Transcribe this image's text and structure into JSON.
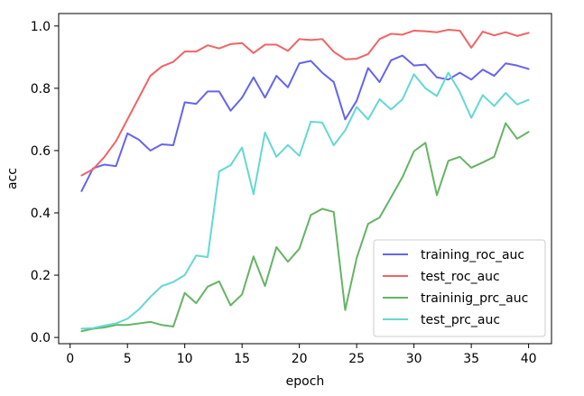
{
  "chart_data": {
    "type": "line",
    "xlabel": "epoch",
    "ylabel": "acc",
    "xlim": [
      -1,
      42
    ],
    "ylim": [
      -0.02,
      1.04
    ],
    "xticks": [
      0,
      5,
      10,
      15,
      20,
      25,
      30,
      35,
      40
    ],
    "yticks": [
      0.0,
      0.2,
      0.4,
      0.6,
      0.8,
      1.0
    ],
    "grid": false,
    "legend_position": "lower-right",
    "x": [
      1,
      2,
      3,
      4,
      5,
      6,
      7,
      8,
      9,
      10,
      11,
      12,
      13,
      14,
      15,
      16,
      17,
      18,
      19,
      20,
      21,
      22,
      23,
      24,
      25,
      26,
      27,
      28,
      29,
      30,
      31,
      32,
      33,
      34,
      35,
      36,
      37,
      38,
      39,
      40
    ],
    "series": [
      {
        "name": "training_roc_auc",
        "color": "#6464f0",
        "values": [
          0.47,
          0.543,
          0.555,
          0.55,
          0.655,
          0.635,
          0.6,
          0.62,
          0.617,
          0.755,
          0.75,
          0.79,
          0.79,
          0.728,
          0.77,
          0.835,
          0.77,
          0.84,
          0.803,
          0.88,
          0.888,
          0.85,
          0.82,
          0.7,
          0.76,
          0.865,
          0.82,
          0.89,
          0.905,
          0.873,
          0.876,
          0.835,
          0.828,
          0.85,
          0.828,
          0.86,
          0.84,
          0.88,
          0.873,
          0.862
        ]
      },
      {
        "name": "test_roc_auc",
        "color": "#f06464",
        "values": [
          0.52,
          0.54,
          0.58,
          0.63,
          0.7,
          0.77,
          0.84,
          0.87,
          0.885,
          0.918,
          0.918,
          0.938,
          0.928,
          0.942,
          0.945,
          0.913,
          0.94,
          0.94,
          0.92,
          0.958,
          0.955,
          0.958,
          0.917,
          0.893,
          0.895,
          0.91,
          0.958,
          0.975,
          0.972,
          0.985,
          0.983,
          0.98,
          0.988,
          0.985,
          0.93,
          0.982,
          0.97,
          0.98,
          0.968,
          0.978
        ]
      },
      {
        "name": "traininig_prc_auc",
        "color": "#64b464",
        "values": [
          0.02,
          0.028,
          0.032,
          0.04,
          0.04,
          0.045,
          0.05,
          0.04,
          0.035,
          0.143,
          0.11,
          0.163,
          0.18,
          0.103,
          0.138,
          0.26,
          0.165,
          0.29,
          0.243,
          0.285,
          0.393,
          0.413,
          0.403,
          0.088,
          0.255,
          0.365,
          0.385,
          0.45,
          0.515,
          0.598,
          0.625,
          0.457,
          0.567,
          0.58,
          0.545,
          0.562,
          0.58,
          0.688,
          0.638,
          0.66
        ]
      },
      {
        "name": "test_prc_auc",
        "color": "#64d8d2",
        "values": [
          0.028,
          0.03,
          0.038,
          0.045,
          0.06,
          0.09,
          0.13,
          0.165,
          0.178,
          0.2,
          0.263,
          0.258,
          0.533,
          0.553,
          0.61,
          0.46,
          0.658,
          0.58,
          0.618,
          0.583,
          0.693,
          0.69,
          0.617,
          0.665,
          0.74,
          0.7,
          0.765,
          0.732,
          0.765,
          0.845,
          0.8,
          0.775,
          0.85,
          0.788,
          0.705,
          0.778,
          0.743,
          0.785,
          0.748,
          0.763
        ]
      }
    ]
  }
}
